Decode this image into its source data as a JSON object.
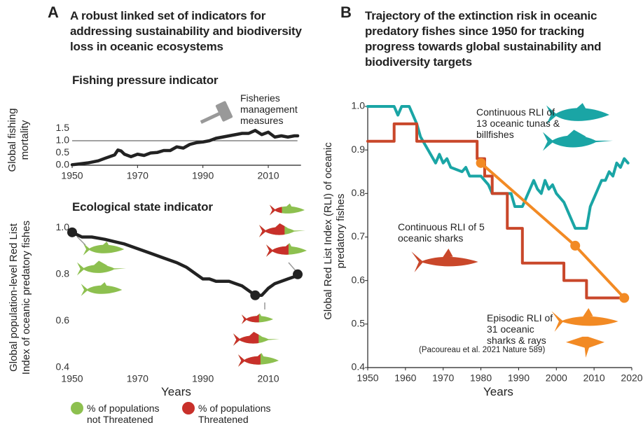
{
  "panels": [
    {
      "letter": "A",
      "title": "A robust linked set of indicators for addressing sustainability and biodiversity loss in oceanic ecosystems"
    },
    {
      "letter": "B",
      "title": "Trajectory of the extinction risk in oceanic predatory fishes since 1950 for tracking progress towards global sustainability and biodiversity targets"
    }
  ],
  "chart_data": [
    {
      "type": "line",
      "title": "Fishing pressure indicator",
      "y_label": "Global fishing mortality",
      "x": [
        1950,
        1952,
        1955,
        1958,
        1960,
        1963,
        1964,
        1965,
        1966,
        1968,
        1970,
        1972,
        1974,
        1976,
        1978,
        1980,
        1982,
        1984,
        1986,
        1988,
        1990,
        1992,
        1994,
        1996,
        1998,
        2000,
        2002,
        2004,
        2006,
        2008,
        2010,
        2012,
        2014,
        2016,
        2018,
        2019
      ],
      "values": [
        0.02,
        0.05,
        0.1,
        0.18,
        0.28,
        0.42,
        0.62,
        0.58,
        0.45,
        0.35,
        0.45,
        0.4,
        0.5,
        0.52,
        0.6,
        0.6,
        0.75,
        0.7,
        0.85,
        0.92,
        0.95,
        1.0,
        1.1,
        1.15,
        1.2,
        1.25,
        1.3,
        1.3,
        1.42,
        1.25,
        1.35,
        1.15,
        1.2,
        1.15,
        1.2,
        1.2
      ],
      "color": "#222222",
      "xlim": [
        1950,
        2020
      ],
      "ylim": [
        0,
        1.7
      ],
      "xticks": [
        1950,
        1970,
        1990,
        2010
      ],
      "yticks": [
        {
          "value": 0,
          "label": "0.0"
        },
        0.5,
        {
          "value": 1,
          "label": "1.0"
        },
        1.5
      ],
      "hline": 1,
      "annotations": [
        "Fisheries management measures"
      ]
    },
    {
      "type": "line",
      "title": "Ecological state indicator",
      "y_label": "Global population-level Red List Index of oceanic predatory fishes",
      "x_label": "Years",
      "x": [
        1950,
        1953,
        1956,
        1960,
        1963,
        1966,
        1970,
        1974,
        1978,
        1982,
        1985,
        1988,
        1990,
        1992,
        1994,
        1996,
        1998,
        2000,
        2002,
        2004,
        2006,
        2008,
        2010,
        2012,
        2014,
        2016,
        2018,
        2019
      ],
      "values": [
        0.98,
        0.96,
        0.96,
        0.95,
        0.94,
        0.93,
        0.91,
        0.89,
        0.87,
        0.85,
        0.83,
        0.8,
        0.78,
        0.78,
        0.77,
        0.77,
        0.77,
        0.76,
        0.75,
        0.73,
        0.71,
        0.71,
        0.74,
        0.76,
        0.77,
        0.78,
        0.79,
        0.8
      ],
      "color": "#222222",
      "xlim": [
        1950,
        2020
      ],
      "ylim": [
        0.4,
        1.05
      ],
      "xticks": [
        1950,
        1970,
        1990,
        2010
      ],
      "yticks": [
        0.4,
        0.6,
        0.8,
        {
          "value": 1,
          "label": "1.0"
        }
      ],
      "legend": [
        {
          "name": "% of populations not Threatened",
          "color": "#8dc04f"
        },
        {
          "name": "% of populations Threatened",
          "color": "#c8302a"
        }
      ]
    },
    {
      "type": "line",
      "y_label": "Global Red List Index (RLI) of oceanic predatory fishes",
      "x_label": "Years",
      "series": [
        {
          "name": "Continuous RLI of 13 oceanic tunas & billfishes",
          "color": "#1aa5a5",
          "x": [
            1950,
            1957,
            1958,
            1959,
            1961,
            1963,
            1964,
            1966,
            1968,
            1969,
            1970,
            1971,
            1972,
            1975,
            1976,
            1977,
            1980,
            1982,
            1983,
            1988,
            1989,
            1991,
            1992,
            1993,
            1994,
            1995,
            1996,
            1997,
            1998,
            1999,
            2000,
            2001,
            2002,
            2003,
            2004,
            2005,
            2008,
            2009,
            2010,
            2011,
            2012,
            2013,
            2014,
            2015,
            2016,
            2017,
            2018,
            2019
          ],
          "values": [
            1.0,
            1.0,
            0.98,
            1.0,
            1.0,
            0.96,
            0.93,
            0.9,
            0.87,
            0.89,
            0.87,
            0.88,
            0.86,
            0.85,
            0.86,
            0.84,
            0.84,
            0.82,
            0.8,
            0.8,
            0.77,
            0.77,
            0.79,
            0.81,
            0.83,
            0.81,
            0.8,
            0.83,
            0.81,
            0.82,
            0.8,
            0.79,
            0.78,
            0.76,
            0.74,
            0.72,
            0.72,
            0.77,
            0.79,
            0.81,
            0.83,
            0.83,
            0.85,
            0.84,
            0.87,
            0.86,
            0.88,
            0.87
          ]
        },
        {
          "name": "Continuous RLI of 5 oceanic sharks",
          "color": "#c9472a",
          "x": [
            1950,
            1957,
            1957,
            1963,
            1963,
            1979,
            1979,
            1981,
            1981,
            1983,
            1983,
            1987,
            1987,
            1991,
            1991,
            2002,
            2002,
            2008,
            2008,
            2018
          ],
          "values": [
            0.92,
            0.92,
            0.96,
            0.96,
            0.92,
            0.92,
            0.88,
            0.88,
            0.84,
            0.84,
            0.8,
            0.8,
            0.72,
            0.72,
            0.64,
            0.64,
            0.6,
            0.6,
            0.56,
            0.56
          ]
        },
        {
          "name": "Episodic RLI of 31 oceanic sharks & rays",
          "color": "#f28a24",
          "markers": true,
          "x": [
            1980,
            2005,
            2018
          ],
          "values": [
            0.87,
            0.68,
            0.56
          ]
        }
      ],
      "xlim": [
        1950,
        2020
      ],
      "ylim": [
        0.4,
        1.0
      ],
      "xticks": [
        1950,
        1960,
        1970,
        1980,
        1990,
        2000,
        2010,
        2020
      ],
      "yticks": [
        0.4,
        0.5,
        0.6,
        0.7,
        0.8,
        0.9,
        {
          "value": 1,
          "label": "1.0"
        }
      ],
      "annotations": [
        "(Pacoureau et al. 2021 Nature 589)"
      ]
    }
  ]
}
